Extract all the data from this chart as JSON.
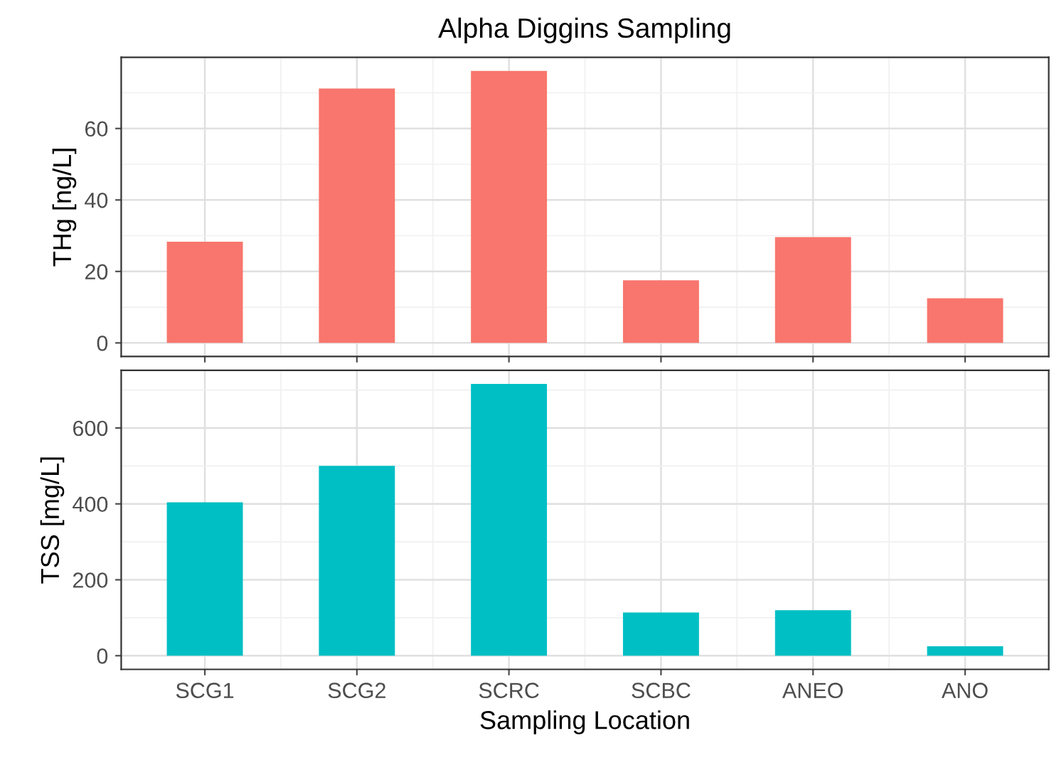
{
  "chart_data": [
    {
      "type": "bar",
      "title": "Alpha Diggins Sampling",
      "ylabel": "THg [ng/L]",
      "categories": [
        null,
        null,
        null,
        null,
        null,
        null
      ],
      "values": [
        28.3,
        71.2,
        76.1,
        17.5,
        29.6,
        12.5
      ],
      "color": "#f8766d",
      "ylim": [
        -3.8,
        79.9
      ],
      "yticks": [
        0,
        20,
        40,
        60
      ],
      "grid": true,
      "tick_labels": "y"
    },
    {
      "type": "bar",
      "xlabel": "Sampling Location",
      "ylabel": "TSS [mg/L]",
      "categories": [
        "SCG1",
        "SCG2",
        "SCRC",
        "SCBC",
        "ANEO",
        "ANO"
      ],
      "values": [
        404,
        500,
        716,
        114,
        120,
        25
      ],
      "color": "#00bfc4",
      "ylim": [
        -36,
        752
      ],
      "yticks": [
        0,
        200,
        400,
        600
      ],
      "grid": true
    }
  ]
}
